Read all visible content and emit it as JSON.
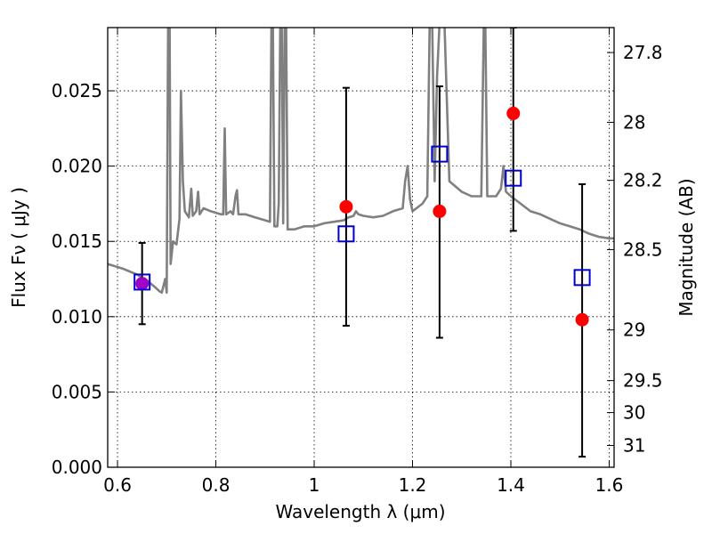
{
  "chart_data": {
    "type": "scatter",
    "title": "",
    "xlabel": "Wavelength  λ (μm)",
    "ylabel": "Flux  Fν  ( μJy )",
    "ylabel_right": "Magnitude (AB)",
    "xlim": [
      0.58,
      1.61
    ],
    "ylim": [
      0.0,
      0.0292
    ],
    "x_ticks": [
      0.6,
      0.8,
      1.0,
      1.2,
      1.4,
      1.6
    ],
    "x_tick_labels": [
      "0.6",
      "0.8",
      "1",
      "1.2",
      "1.4",
      "1.6"
    ],
    "y_ticks": [
      0.0,
      0.005,
      0.01,
      0.015,
      0.02,
      0.025
    ],
    "y_tick_labels": [
      "0.000",
      "0.005",
      "0.010",
      "0.015",
      "0.020",
      "0.025"
    ],
    "right_ticks": [
      {
        "label": "27.8",
        "mag": 27.8
      },
      {
        "label": "28",
        "mag": 28.0
      },
      {
        "label": "28.2",
        "mag": 28.2
      },
      {
        "label": "28.5",
        "mag": 28.5
      },
      {
        "label": "29",
        "mag": 29.0
      },
      {
        "label": "29.5",
        "mag": 29.5
      },
      {
        "label": "30",
        "mag": 30.0
      },
      {
        "label": "31",
        "mag": 31.0
      }
    ],
    "grid": true,
    "series": [
      {
        "kind": "line",
        "color": "#808080",
        "points": [
          [
            0.58,
            0.0135
          ],
          [
            0.61,
            0.0132
          ],
          [
            0.64,
            0.0128
          ],
          [
            0.66,
            0.0124
          ],
          [
            0.675,
            0.012
          ],
          [
            0.685,
            0.0117
          ],
          [
            0.69,
            0.0116
          ],
          [
            0.697,
            0.0125
          ],
          [
            0.7,
            0.0116
          ],
          [
            0.703,
            0.0295
          ],
          [
            0.706,
            0.0295
          ],
          [
            0.708,
            0.0135
          ],
          [
            0.713,
            0.015
          ],
          [
            0.72,
            0.0148
          ],
          [
            0.726,
            0.0165
          ],
          [
            0.729,
            0.025
          ],
          [
            0.733,
            0.019
          ],
          [
            0.737,
            0.017
          ],
          [
            0.745,
            0.0166
          ],
          [
            0.75,
            0.0185
          ],
          [
            0.753,
            0.0167
          ],
          [
            0.76,
            0.017
          ],
          [
            0.764,
            0.0183
          ],
          [
            0.767,
            0.0168
          ],
          [
            0.775,
            0.0172
          ],
          [
            0.79,
            0.017
          ],
          [
            0.81,
            0.0168
          ],
          [
            0.815,
            0.0168
          ],
          [
            0.818,
            0.0225
          ],
          [
            0.821,
            0.0168
          ],
          [
            0.83,
            0.017
          ],
          [
            0.835,
            0.0168
          ],
          [
            0.84,
            0.018
          ],
          [
            0.843,
            0.0184
          ],
          [
            0.846,
            0.0168
          ],
          [
            0.86,
            0.0168
          ],
          [
            0.88,
            0.0166
          ],
          [
            0.9,
            0.0164
          ],
          [
            0.91,
            0.0163
          ],
          [
            0.913,
            0.0295
          ],
          [
            0.916,
            0.0295
          ],
          [
            0.919,
            0.016
          ],
          [
            0.925,
            0.016
          ],
          [
            0.928,
            0.0175
          ],
          [
            0.931,
            0.0295
          ],
          [
            0.934,
            0.0295
          ],
          [
            0.937,
            0.0162
          ],
          [
            0.94,
            0.0295
          ],
          [
            0.943,
            0.0295
          ],
          [
            0.946,
            0.0158
          ],
          [
            0.96,
            0.0158
          ],
          [
            0.98,
            0.016
          ],
          [
            1.0,
            0.016
          ],
          [
            1.02,
            0.0162
          ],
          [
            1.04,
            0.0163
          ],
          [
            1.06,
            0.0164
          ],
          [
            1.07,
            0.0166
          ],
          [
            1.08,
            0.0167
          ],
          [
            1.085,
            0.017
          ],
          [
            1.09,
            0.0168
          ],
          [
            1.1,
            0.0167
          ],
          [
            1.12,
            0.0166
          ],
          [
            1.14,
            0.0167
          ],
          [
            1.16,
            0.017
          ],
          [
            1.18,
            0.0172
          ],
          [
            1.185,
            0.019
          ],
          [
            1.19,
            0.02
          ],
          [
            1.195,
            0.0178
          ],
          [
            1.2,
            0.017
          ],
          [
            1.22,
            0.0175
          ],
          [
            1.23,
            0.018
          ],
          [
            1.235,
            0.0295
          ],
          [
            1.24,
            0.0295
          ],
          [
            1.245,
            0.019
          ],
          [
            1.25,
            0.026
          ],
          [
            1.255,
            0.0295
          ],
          [
            1.265,
            0.0295
          ],
          [
            1.275,
            0.019
          ],
          [
            1.3,
            0.0183
          ],
          [
            1.32,
            0.018
          ],
          [
            1.34,
            0.018
          ],
          [
            1.345,
            0.0295
          ],
          [
            1.348,
            0.0295
          ],
          [
            1.352,
            0.018
          ],
          [
            1.37,
            0.018
          ],
          [
            1.38,
            0.0185
          ],
          [
            1.385,
            0.02
          ],
          [
            1.39,
            0.0183
          ],
          [
            1.4,
            0.018
          ],
          [
            1.42,
            0.0175
          ],
          [
            1.44,
            0.017
          ],
          [
            1.46,
            0.0168
          ],
          [
            1.48,
            0.0165
          ],
          [
            1.5,
            0.0162
          ],
          [
            1.52,
            0.016
          ],
          [
            1.54,
            0.0158
          ],
          [
            1.56,
            0.0155
          ],
          [
            1.58,
            0.0153
          ],
          [
            1.6,
            0.0152
          ],
          [
            1.61,
            0.0152
          ]
        ]
      },
      {
        "kind": "errorbar",
        "color": "#000000",
        "points": [
          {
            "x": 0.65,
            "low": 0.0095,
            "high": 0.0149
          },
          {
            "x": 1.065,
            "low": 0.0094,
            "high": 0.0252
          },
          {
            "x": 1.255,
            "low": 0.0086,
            "high": 0.0253
          },
          {
            "x": 1.405,
            "low": 0.0157,
            "high": 0.0292
          },
          {
            "x": 1.545,
            "low": 0.0007,
            "high": 0.0188
          }
        ]
      },
      {
        "kind": "filled-circle",
        "color": "#ff0000",
        "points": [
          {
            "x": 0.65,
            "y": 0.0122,
            "color": "#a000c8"
          },
          {
            "x": 1.065,
            "y": 0.0173
          },
          {
            "x": 1.255,
            "y": 0.017
          },
          {
            "x": 1.405,
            "y": 0.0235
          },
          {
            "x": 1.545,
            "y": 0.0098
          }
        ]
      },
      {
        "kind": "open-square",
        "color": "#0000cc",
        "points": [
          {
            "x": 0.65,
            "y": 0.0123
          },
          {
            "x": 1.065,
            "y": 0.0155
          },
          {
            "x": 1.255,
            "y": 0.0208
          },
          {
            "x": 1.405,
            "y": 0.0192
          },
          {
            "x": 1.545,
            "y": 0.0126
          }
        ]
      }
    ]
  }
}
